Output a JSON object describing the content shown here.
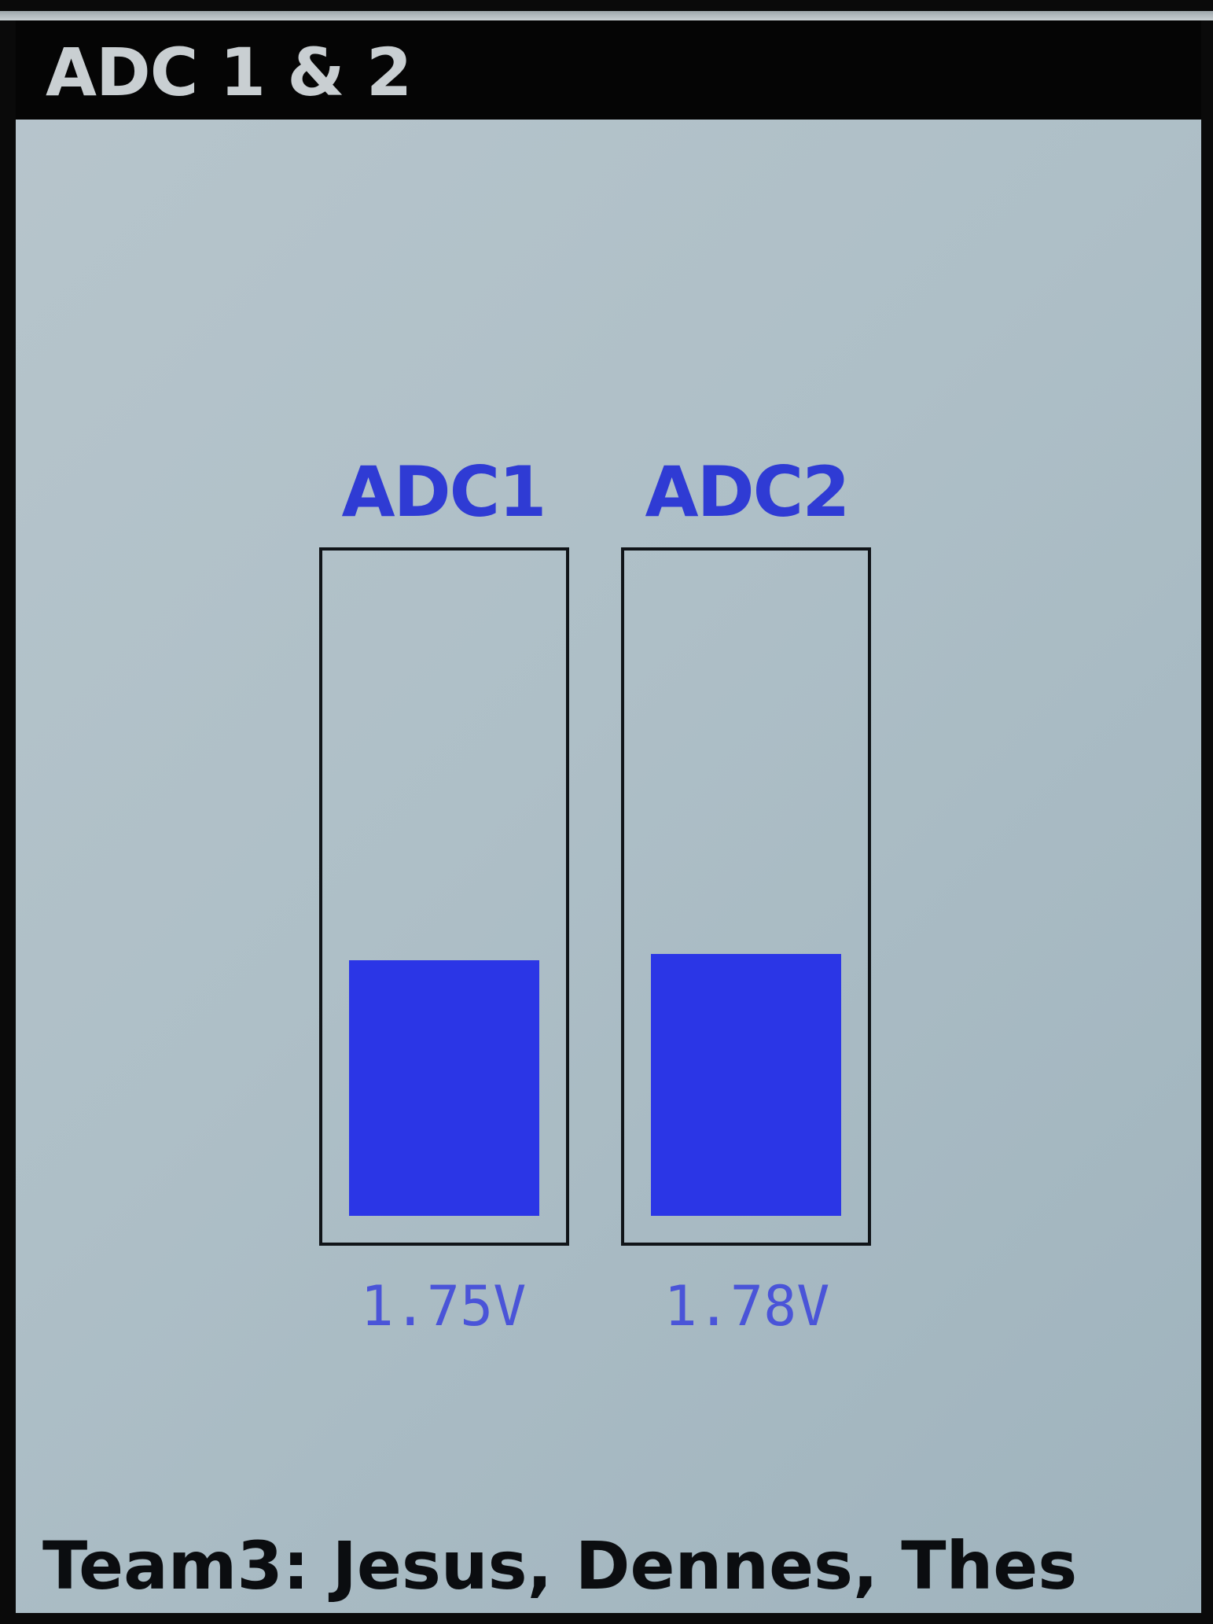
{
  "header": {
    "title": "ADC 1 & 2"
  },
  "channels": [
    {
      "label": "ADC1",
      "readout": "1.75V",
      "fill_fraction": 0.4
    },
    {
      "label": "ADC2",
      "readout": "1.78V",
      "fill_fraction": 0.41
    }
  ],
  "footer": {
    "text": "Team3: Jesus, Dennes, Thes"
  },
  "colors": {
    "title_bar": "#050505",
    "screen_background": "#b7c5cc",
    "bar_fill": "#2b36e6",
    "label_text": "#2f3bd4"
  }
}
